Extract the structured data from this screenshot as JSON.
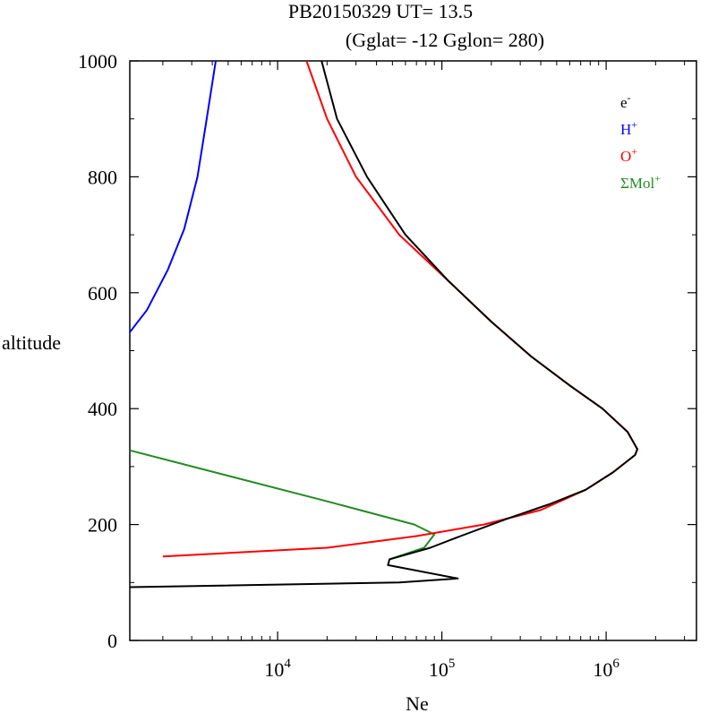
{
  "chart_data": {
    "type": "line",
    "title": "PB20150329   UT=  13.5",
    "subtitle": "(Gglat= -12   Gglon=  280)",
    "xlabel": "Ne",
    "ylabel": "altitude",
    "xscale": "log",
    "xlim_log10": [
      3.1,
      6.55
    ],
    "ylim": [
      0,
      1000
    ],
    "y_ticks": [
      0,
      200,
      400,
      600,
      800,
      1000
    ],
    "x_ticks": [
      {
        "base": "10",
        "exp": "4",
        "log10": 4
      },
      {
        "base": "10",
        "exp": "5",
        "log10": 5
      },
      {
        "base": "10",
        "exp": "6",
        "log10": 6
      }
    ],
    "legend_position": "top-right",
    "series": [
      {
        "name": "e-",
        "label_base": "e",
        "label_sup": "-",
        "color": "#000000",
        "points": [
          [
            1260,
            92
          ],
          [
            55000,
            100
          ],
          [
            125000,
            107
          ],
          [
            47000,
            130
          ],
          [
            48000,
            140
          ],
          [
            85000,
            160
          ],
          [
            130000,
            180
          ],
          [
            250000,
            210
          ],
          [
            450000,
            235
          ],
          [
            750000,
            260
          ],
          [
            1100000,
            290
          ],
          [
            1500000,
            320
          ],
          [
            1550000,
            330
          ],
          [
            1350000,
            360
          ],
          [
            950000,
            400
          ],
          [
            600000,
            440
          ],
          [
            350000,
            490
          ],
          [
            200000,
            550
          ],
          [
            110000,
            620
          ],
          [
            60000,
            700
          ],
          [
            35000,
            800
          ],
          [
            23000,
            900
          ],
          [
            18500,
            1000
          ]
        ]
      },
      {
        "name": "H+",
        "label_base": "H",
        "label_sup": "+",
        "color": "#0000ff",
        "points": [
          [
            1260,
            532
          ],
          [
            1600,
            570
          ],
          [
            2150,
            640
          ],
          [
            2700,
            710
          ],
          [
            3250,
            800
          ],
          [
            3700,
            900
          ],
          [
            4200,
            1000
          ]
        ]
      },
      {
        "name": "O+",
        "label_base": "O",
        "label_sup": "+",
        "color": "#ff0000",
        "points": [
          [
            2000,
            145
          ],
          [
            20000,
            160
          ],
          [
            70000,
            180
          ],
          [
            180000,
            200
          ],
          [
            400000,
            225
          ],
          [
            750000,
            260
          ],
          [
            1100000,
            290
          ],
          [
            1500000,
            320
          ],
          [
            1550000,
            330
          ],
          [
            1350000,
            360
          ],
          [
            950000,
            400
          ],
          [
            600000,
            440
          ],
          [
            350000,
            490
          ],
          [
            200000,
            550
          ],
          [
            110000,
            620
          ],
          [
            55000,
            700
          ],
          [
            30000,
            800
          ],
          [
            20000,
            900
          ],
          [
            15000,
            1000
          ]
        ]
      },
      {
        "name": "ΣMol+",
        "label_base": "ΣMol",
        "label_sup": "+",
        "color": "#228b22",
        "points": [
          [
            48000,
            140
          ],
          [
            78000,
            160
          ],
          [
            90000,
            183
          ],
          [
            68000,
            200
          ],
          [
            20000,
            240
          ],
          [
            1260,
            328
          ]
        ]
      }
    ]
  }
}
